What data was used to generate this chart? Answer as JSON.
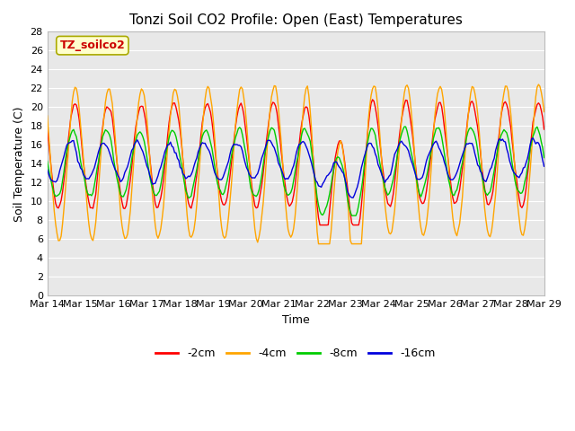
{
  "title": "Tonzi Soil CO2 Profile: Open (East) Temperatures",
  "xlabel": "Time",
  "ylabel": "Soil Temperature (C)",
  "ylim": [
    0,
    28
  ],
  "yticks": [
    0,
    2,
    4,
    6,
    8,
    10,
    12,
    14,
    16,
    18,
    20,
    22,
    24,
    26,
    28
  ],
  "x_tick_days": [
    14,
    15,
    16,
    17,
    18,
    19,
    20,
    21,
    22,
    23,
    24,
    25,
    26,
    27,
    28,
    29
  ],
  "series": [
    {
      "label": "-2cm",
      "color": "#ff0000"
    },
    {
      "label": "-4cm",
      "color": "#ffa500"
    },
    {
      "label": "-8cm",
      "color": "#00cc00"
    },
    {
      "label": "-16cm",
      "color": "#0000dd"
    }
  ],
  "plot_bg_color": "#e8e8e8",
  "fig_bg_color": "#ffffff",
  "grid_color": "#ffffff",
  "title_fontsize": 11,
  "axis_fontsize": 9,
  "tick_fontsize": 8,
  "legend_box_facecolor": "#ffffcc",
  "legend_box_edgecolor": "#aaaa00",
  "legend_text_color": "#cc0000",
  "legend_label": "TZ_soilco2"
}
